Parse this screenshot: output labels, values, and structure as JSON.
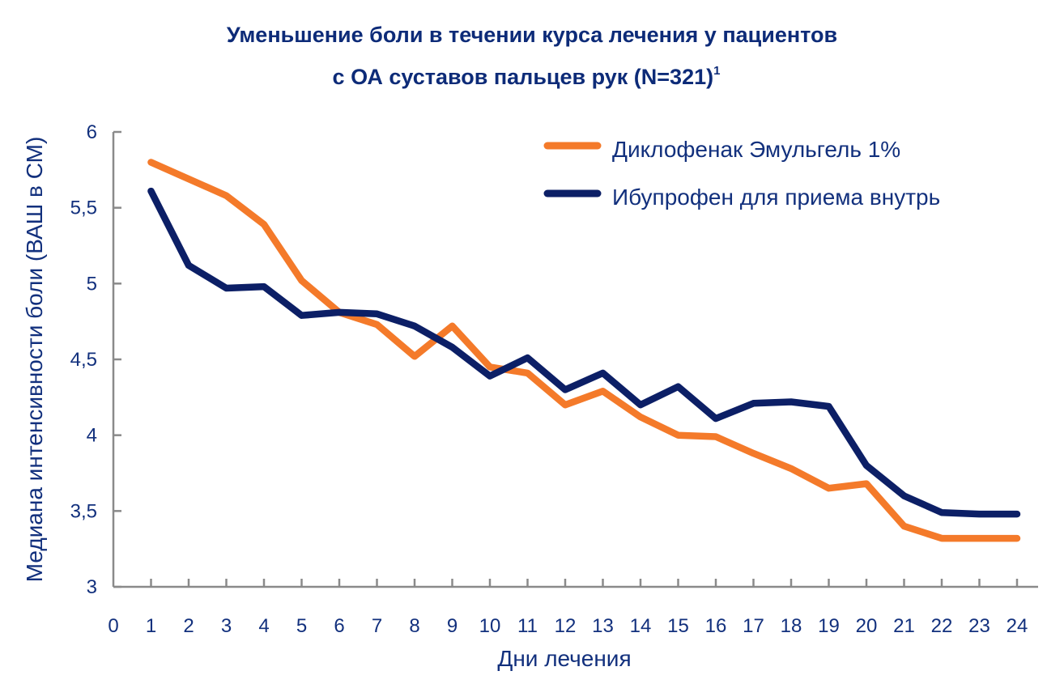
{
  "chart_data": {
    "type": "line",
    "title_line1": "Уменьшение боли в течении курса лечения у пациентов",
    "title_line2": "с ОА суставов пальцев рук (N=321)",
    "title_superscript": "1",
    "xlabel": "Дни лечения",
    "ylabel": "Медиана интенсивности боли (ВАШ в СМ)",
    "xlim": [
      0,
      24
    ],
    "ylim": [
      3,
      6
    ],
    "x_ticks": [
      0,
      1,
      2,
      3,
      4,
      5,
      6,
      7,
      8,
      9,
      10,
      11,
      12,
      13,
      14,
      15,
      16,
      17,
      18,
      19,
      20,
      21,
      22,
      23,
      24
    ],
    "y_ticks": [
      3,
      3.5,
      4,
      4.5,
      5,
      5.5,
      6
    ],
    "y_tick_labels": [
      "3",
      "3,5",
      "4",
      "4,5",
      "5",
      "5,5",
      "6"
    ],
    "grid": false,
    "legend_position": "top-right",
    "x": [
      1,
      2,
      3,
      4,
      5,
      6,
      7,
      8,
      9,
      10,
      11,
      12,
      13,
      14,
      15,
      16,
      17,
      18,
      19,
      20,
      21,
      22,
      23,
      24
    ],
    "series": [
      {
        "name": "Диклофенак Эмульгель 1%",
        "color": "#f47a2a",
        "values": [
          5.8,
          5.69,
          5.58,
          5.39,
          5.02,
          4.81,
          4.73,
          4.52,
          4.72,
          4.45,
          4.41,
          4.2,
          4.29,
          4.12,
          4.0,
          3.99,
          3.88,
          3.78,
          3.65,
          3.68,
          3.4,
          3.32,
          3.32,
          3.32
        ]
      },
      {
        "name": "Ибупрофен для приема внутрь",
        "color": "#0c1f66",
        "values": [
          5.61,
          5.12,
          4.97,
          4.98,
          4.79,
          4.81,
          4.8,
          4.72,
          4.58,
          4.39,
          4.51,
          4.3,
          4.41,
          4.2,
          4.32,
          4.11,
          4.21,
          4.22,
          4.19,
          3.8,
          3.6,
          3.49,
          3.48,
          3.48
        ]
      }
    ]
  }
}
